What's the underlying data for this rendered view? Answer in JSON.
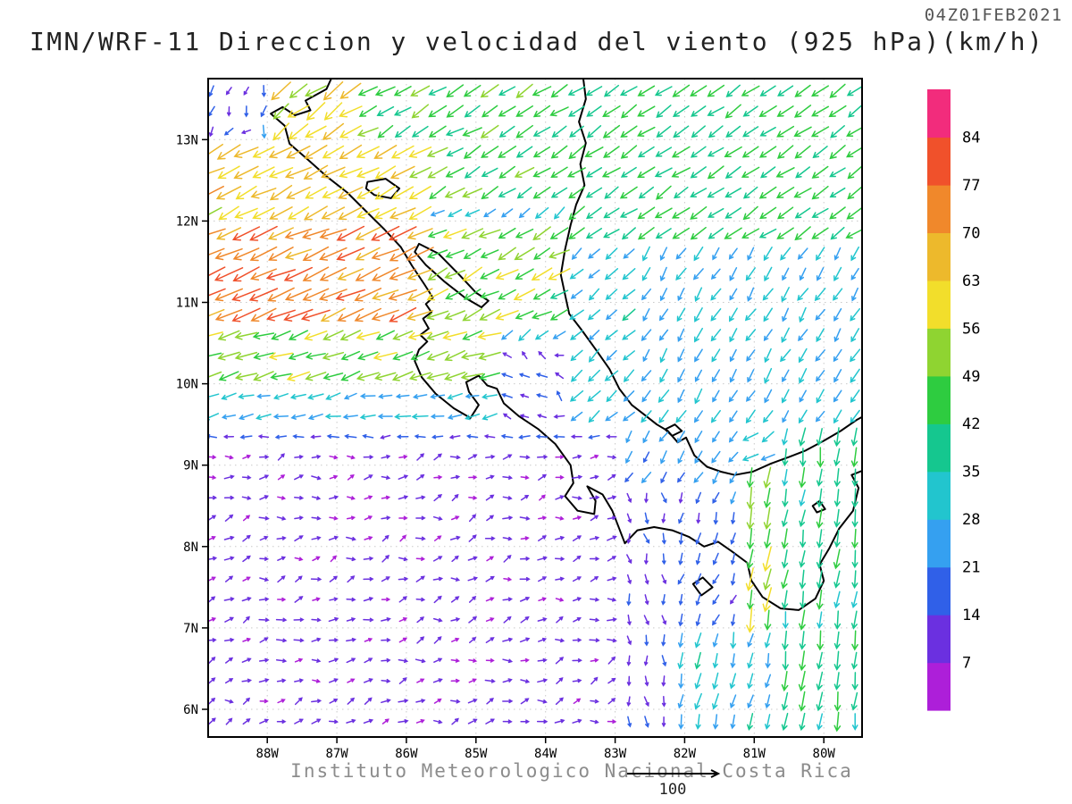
{
  "header": {
    "timestamp": "04Z01FEB2021",
    "title": "IMN/WRF-11 Direccion y velocidad del viento (925 hPa)(km/h)"
  },
  "footer": {
    "caption": "Instituto Meteorologico Nacional Costa Rica",
    "reference_value": "100"
  },
  "chart_data": {
    "type": "vector-field-map",
    "model": "IMN/WRF-11",
    "variable": "Direccion y velocidad del viento",
    "level": "925 hPa",
    "units": "km/h",
    "valid_time": "04Z01FEB2021",
    "region": "Costa Rica / Central America",
    "lat_range": [
      5.66,
      13.75
    ],
    "lonW_range": [
      79.45,
      88.85
    ],
    "lat_ticks": {
      "values": [
        6,
        7,
        8,
        9,
        10,
        11,
        12,
        13
      ],
      "labels": [
        "6N",
        "7N",
        "8N",
        "9N",
        "10N",
        "11N",
        "12N",
        "13N"
      ]
    },
    "lon_ticks": {
      "values": [
        88,
        87,
        86,
        85,
        84,
        83,
        82,
        81,
        80
      ],
      "labels": [
        "88W",
        "87W",
        "86W",
        "85W",
        "84W",
        "83W",
        "82W",
        "81W",
        "80W"
      ]
    },
    "reference_vector_kmh": 100,
    "grid_spacing_deg": 0.25,
    "arrow_grid": {
      "lat_start": 5.85,
      "lat_end": 13.72,
      "lonW_start": 79.55,
      "lonW_end": 88.85
    },
    "colorbar": {
      "title_units": "km/h",
      "thresholds": [
        7,
        14,
        21,
        28,
        35,
        42,
        49,
        56,
        63,
        70,
        77,
        84
      ],
      "labels": [
        "7",
        "14",
        "21",
        "28",
        "35",
        "42",
        "49",
        "56",
        "63",
        "70",
        "77",
        "84"
      ],
      "colors": [
        "#AD1FD9",
        "#6B30E0",
        "#3060E8",
        "#35A0F0",
        "#22C5CE",
        "#15C78F",
        "#2ECC40",
        "#8FD431",
        "#F2DE2B",
        "#EDB92C",
        "#F0882B",
        "#F0512B",
        "#F22C7C"
      ]
    },
    "wind_default": {
      "name": "background-easterly",
      "dir": 235,
      "speed": 30,
      "jd": 15,
      "js": 0.2
    },
    "wind_regions": [
      {
        "name": "fonseca-gap-jet",
        "lat": [
          12.9,
          13.78
        ],
        "lonW": [
          86.6,
          87.9
        ],
        "dir": 235,
        "speed": 58,
        "jd": 14,
        "js": 0.18
      },
      {
        "name": "top-left-weak",
        "lat": [
          12.9,
          13.78
        ],
        "lonW": [
          87.9,
          88.9
        ],
        "dir": 215,
        "speed": 15,
        "jd": 45,
        "js": 0.5
      },
      {
        "name": "managua-jet",
        "lat": [
          11.9,
          12.9
        ],
        "lonW": [
          85.7,
          88.9
        ],
        "dir": 243,
        "speed": 63,
        "jd": 8,
        "js": 0.12
      },
      {
        "name": "north-band",
        "lat": [
          12.3,
          13.78
        ],
        "lonW": [
          83.8,
          88.9
        ],
        "dir": 240,
        "speed": 45,
        "jd": 10,
        "js": 0.15
      },
      {
        "name": "top-east-band",
        "lat": [
          11.8,
          13.78
        ],
        "lonW": [
          79.4,
          83.8
        ],
        "dir": 236,
        "speed": 42,
        "jd": 8,
        "js": 0.12
      },
      {
        "name": "papagayo-jet-core",
        "lat": [
          10.7,
          11.9
        ],
        "lonW": [
          85.6,
          88.9
        ],
        "dir": 247,
        "speed": 74,
        "jd": 6,
        "js": 0.1
      },
      {
        "name": "papagayo-jet-inland",
        "lat": [
          10.7,
          11.9
        ],
        "lonW": [
          83.8,
          85.6
        ],
        "dir": 243,
        "speed": 50,
        "jd": 10,
        "js": 0.18
      },
      {
        "name": "cr-interior-weak",
        "lat": [
          9.6,
          10.45
        ],
        "lonW": [
          83.6,
          84.7
        ],
        "dir": 300,
        "speed": 13,
        "jd": 40,
        "js": 0.45
      },
      {
        "name": "papagayo-south-edge",
        "lat": [
          9.95,
          10.7
        ],
        "lonW": [
          84.6,
          88.9
        ],
        "dir": 252,
        "speed": 52,
        "jd": 8,
        "js": 0.15
      },
      {
        "name": "nicoya-westerly",
        "lat": [
          9.6,
          9.95
        ],
        "lonW": [
          84.0,
          88.9
        ],
        "dir": 258,
        "speed": 27,
        "jd": 12,
        "js": 0.2
      },
      {
        "name": "pacific-west-flank",
        "lat": [
          9.2,
          9.6
        ],
        "lonW": [
          82.9,
          88.9
        ],
        "dir": 268,
        "speed": 15,
        "jd": 15,
        "js": 0.25
      },
      {
        "name": "pacific-gyre-south",
        "lat": [
          5.6,
          9.2
        ],
        "lonW": [
          83.0,
          88.9
        ],
        "dir": 75,
        "speed": 9,
        "jd": 32,
        "js": 0.4
      },
      {
        "name": "caribbean-coast-cr",
        "lat": [
          9.6,
          11.8
        ],
        "lonW": [
          82.6,
          83.8
        ],
        "dir": 228,
        "speed": 30,
        "jd": 10,
        "js": 0.18
      },
      {
        "name": "caribbean-offshore",
        "lat": [
          9.6,
          11.8
        ],
        "lonW": [
          79.4,
          82.6
        ],
        "dir": 212,
        "speed": 28,
        "jd": 10,
        "js": 0.18
      },
      {
        "name": "bocas-ssw-flow",
        "lat": [
          8.8,
          9.6
        ],
        "lonW": [
          81.3,
          83.0
        ],
        "dir": 215,
        "speed": 22,
        "jd": 12,
        "js": 0.2
      },
      {
        "name": "panama-gap-jet",
        "lat": [
          7.0,
          9.0
        ],
        "lonW": [
          80.7,
          81.15
        ],
        "dir": 190,
        "speed": 52,
        "jd": 6,
        "js": 0.2
      },
      {
        "name": "panama-east-southflow",
        "lat": [
          5.6,
          9.6
        ],
        "lonW": [
          79.4,
          80.7
        ],
        "dir": 188,
        "speed": 40,
        "jd": 8,
        "js": 0.15
      },
      {
        "name": "chiriqui-weak",
        "lat": [
          7.0,
          8.8
        ],
        "lonW": [
          81.15,
          82.3
        ],
        "dir": 200,
        "speed": 18,
        "jd": 16,
        "js": 0.25
      },
      {
        "name": "panama-south-flow",
        "lat": [
          5.6,
          7.0
        ],
        "lonW": [
          80.7,
          82.3
        ],
        "dir": 192,
        "speed": 30,
        "jd": 10,
        "js": 0.2
      },
      {
        "name": "transition-south",
        "lat": [
          5.6,
          8.8
        ],
        "lonW": [
          82.3,
          83.05
        ],
        "dir": 170,
        "speed": 14,
        "jd": 22,
        "js": 0.3
      }
    ],
    "coastlines": [
      {
        "name": "pacific-coastline",
        "closed": false,
        "points": [
          [
            87.0,
            13.9
          ],
          [
            87.15,
            13.62
          ],
          [
            87.45,
            13.48
          ],
          [
            87.38,
            13.36
          ],
          [
            87.6,
            13.3
          ],
          [
            87.78,
            13.4
          ],
          [
            87.95,
            13.32
          ],
          [
            87.75,
            13.17
          ],
          [
            87.68,
            12.95
          ],
          [
            87.45,
            12.78
          ],
          [
            87.15,
            12.55
          ],
          [
            86.85,
            12.35
          ],
          [
            86.58,
            12.12
          ],
          [
            86.32,
            11.9
          ],
          [
            86.08,
            11.68
          ],
          [
            85.92,
            11.45
          ],
          [
            85.74,
            11.22
          ],
          [
            85.62,
            11.06
          ],
          [
            85.72,
            10.98
          ],
          [
            85.64,
            10.88
          ],
          [
            85.76,
            10.8
          ],
          [
            85.68,
            10.68
          ],
          [
            85.8,
            10.6
          ],
          [
            85.7,
            10.52
          ],
          [
            85.82,
            10.42
          ],
          [
            85.88,
            10.28
          ],
          [
            85.78,
            10.08
          ],
          [
            85.58,
            9.88
          ],
          [
            85.32,
            9.7
          ],
          [
            85.08,
            9.58
          ],
          [
            84.96,
            9.74
          ],
          [
            85.1,
            9.9
          ],
          [
            85.14,
            10.02
          ],
          [
            84.96,
            10.1
          ],
          [
            84.84,
            9.98
          ],
          [
            84.7,
            9.94
          ],
          [
            84.6,
            9.76
          ],
          [
            84.38,
            9.6
          ],
          [
            84.1,
            9.44
          ],
          [
            83.86,
            9.26
          ],
          [
            83.64,
            9.0
          ],
          [
            83.6,
            8.78
          ],
          [
            83.72,
            8.62
          ],
          [
            83.54,
            8.44
          ],
          [
            83.3,
            8.4
          ],
          [
            83.28,
            8.56
          ],
          [
            83.4,
            8.74
          ],
          [
            83.18,
            8.64
          ],
          [
            83.04,
            8.44
          ],
          [
            82.94,
            8.22
          ],
          [
            82.86,
            8.04
          ],
          [
            82.68,
            8.2
          ],
          [
            82.44,
            8.24
          ],
          [
            82.18,
            8.2
          ],
          [
            81.94,
            8.12
          ],
          [
            81.72,
            8.0
          ],
          [
            81.52,
            8.06
          ],
          [
            81.32,
            7.94
          ],
          [
            81.1,
            7.8
          ],
          [
            81.04,
            7.58
          ],
          [
            80.88,
            7.38
          ],
          [
            80.62,
            7.24
          ],
          [
            80.36,
            7.22
          ],
          [
            80.12,
            7.36
          ],
          [
            80.0,
            7.58
          ],
          [
            80.06,
            7.78
          ],
          [
            79.92,
            7.98
          ],
          [
            79.78,
            8.22
          ],
          [
            79.58,
            8.44
          ],
          [
            79.5,
            8.72
          ],
          [
            79.6,
            8.88
          ],
          [
            79.42,
            8.94
          ],
          [
            79.3,
            9.0
          ]
        ]
      },
      {
        "name": "caribbean-coastline",
        "closed": false,
        "points": [
          [
            83.48,
            13.9
          ],
          [
            83.42,
            13.5
          ],
          [
            83.52,
            13.22
          ],
          [
            83.42,
            12.96
          ],
          [
            83.5,
            12.7
          ],
          [
            83.44,
            12.44
          ],
          [
            83.56,
            12.2
          ],
          [
            83.64,
            11.95
          ],
          [
            83.72,
            11.65
          ],
          [
            83.78,
            11.34
          ],
          [
            83.7,
            11.02
          ],
          [
            83.66,
            10.86
          ],
          [
            83.48,
            10.66
          ],
          [
            83.26,
            10.4
          ],
          [
            83.08,
            10.18
          ],
          [
            82.94,
            9.94
          ],
          [
            82.76,
            9.74
          ],
          [
            82.58,
            9.62
          ],
          [
            82.4,
            9.5
          ],
          [
            82.24,
            9.42
          ],
          [
            82.1,
            9.28
          ],
          [
            81.98,
            9.34
          ],
          [
            81.86,
            9.12
          ],
          [
            81.68,
            8.98
          ],
          [
            81.48,
            8.92
          ],
          [
            81.28,
            8.88
          ],
          [
            81.02,
            8.92
          ],
          [
            80.76,
            9.02
          ],
          [
            80.5,
            9.1
          ],
          [
            80.26,
            9.18
          ],
          [
            80.0,
            9.3
          ],
          [
            79.76,
            9.42
          ],
          [
            79.52,
            9.56
          ],
          [
            79.3,
            9.66
          ]
        ]
      },
      {
        "name": "lake-nicaragua",
        "closed": true,
        "points": [
          [
            85.82,
            11.72
          ],
          [
            85.54,
            11.6
          ],
          [
            85.24,
            11.34
          ],
          [
            85.0,
            11.12
          ],
          [
            84.82,
            11.02
          ],
          [
            84.92,
            10.94
          ],
          [
            85.16,
            11.06
          ],
          [
            85.46,
            11.26
          ],
          [
            85.72,
            11.46
          ],
          [
            85.88,
            11.62
          ]
        ]
      },
      {
        "name": "lake-managua",
        "closed": true,
        "points": [
          [
            86.56,
            12.48
          ],
          [
            86.3,
            12.52
          ],
          [
            86.1,
            12.4
          ],
          [
            86.22,
            12.28
          ],
          [
            86.46,
            12.32
          ],
          [
            86.58,
            12.4
          ]
        ]
      },
      {
        "name": "coiba-island",
        "closed": true,
        "points": [
          [
            81.88,
            7.54
          ],
          [
            81.74,
            7.62
          ],
          [
            81.6,
            7.5
          ],
          [
            81.76,
            7.4
          ]
        ]
      },
      {
        "name": "bocas-islets",
        "closed": true,
        "points": [
          [
            82.28,
            9.44
          ],
          [
            82.14,
            9.5
          ],
          [
            82.04,
            9.42
          ],
          [
            82.18,
            9.36
          ]
        ]
      },
      {
        "name": "gulf-islet",
        "closed": true,
        "points": [
          [
            80.16,
            8.5
          ],
          [
            80.06,
            8.56
          ],
          [
            79.98,
            8.46
          ],
          [
            80.1,
            8.42
          ]
        ]
      }
    ]
  }
}
